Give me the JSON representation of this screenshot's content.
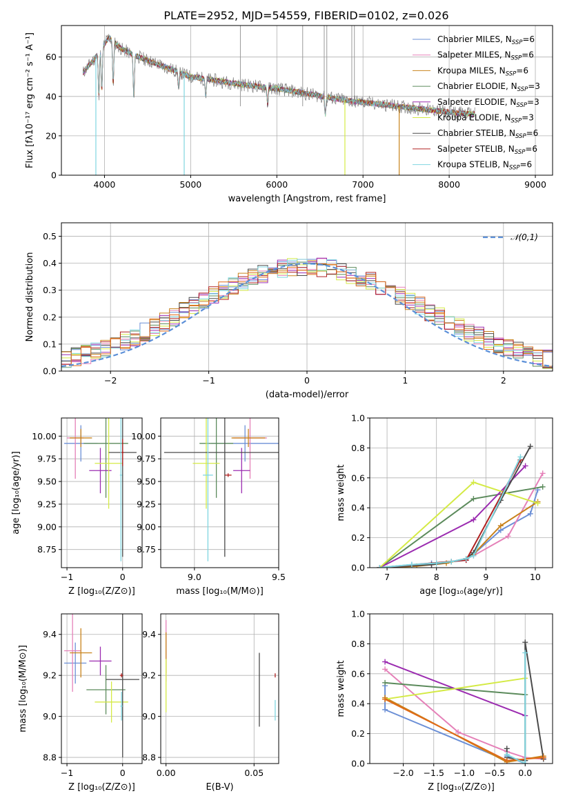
{
  "figure_title": "PLATE=2952, MJD=54559, FIBERID=0102, z=0.026",
  "legend_spectra": [
    {
      "name": "Chabrier MILES, N",
      "sub": "SSP",
      "suffix": "=6",
      "color": "#6b8fd6"
    },
    {
      "name": "Salpeter MILES, N",
      "sub": "SSP",
      "suffix": "=6",
      "color": "#e580b8"
    },
    {
      "name": "Kroupa MILES, N",
      "sub": "SSP",
      "suffix": "=6",
      "color": "#c8821a"
    },
    {
      "name": "Chabrier ELODIE, N",
      "sub": "SSP",
      "suffix": "=3",
      "color": "#5b8a5b"
    },
    {
      "name": "Salpeter ELODIE, N",
      "sub": "SSP",
      "suffix": "=3",
      "color": "#9b2bb0"
    },
    {
      "name": "Kroupa ELODIE, N",
      "sub": "SSP",
      "suffix": "=3",
      "color": "#d4ea45"
    },
    {
      "name": "Chabrier STELIB, N",
      "sub": "SSP",
      "suffix": "=6",
      "color": "#4a4a4a"
    },
    {
      "name": "Salpeter STELIB, N",
      "sub": "SSP",
      "suffix": "=6",
      "color": "#b02020"
    },
    {
      "name": "Kroupa STELIB, N",
      "sub": "SSP",
      "suffix": "=6",
      "color": "#7fd6e0"
    }
  ],
  "chart_data": [
    {
      "id": "spectrum",
      "type": "line",
      "xlabel": "wavelength [Angstrom, rest frame]",
      "ylabel": "Flux [fλ10⁻¹⁷ erg cm⁻² s⁻¹ A⁻¹]",
      "xlim": [
        3500,
        9200
      ],
      "ylim": [
        0,
        76
      ],
      "xticks": [
        4000,
        5000,
        6000,
        7000,
        8000,
        9000
      ],
      "yticks": [
        0,
        20,
        40,
        60
      ],
      "continuum": {
        "x": [
          3750,
          3900,
          4050,
          4200,
          4400,
          4700,
          5000,
          5300,
          5600,
          6000,
          6400,
          6800,
          7200,
          7600,
          8000,
          8300
        ],
        "y": [
          52,
          60,
          70,
          64,
          60,
          55,
          50,
          48,
          46,
          44,
          41,
          38,
          36,
          34,
          32,
          31
        ]
      },
      "absorption_lines": [
        3934,
        3969,
        4101,
        4340,
        4861,
        5175,
        5893,
        6563
      ],
      "model_dropouts": [
        {
          "x": 3900,
          "to": 0
        },
        {
          "x": 4925,
          "to": 0
        },
        {
          "x": 6790,
          "to": 0
        },
        {
          "x": 7420,
          "to": 0
        }
      ],
      "sky_spikes": [
        5577,
        6300,
        6550,
        6580,
        6870,
        6900
      ]
    },
    {
      "id": "residuals",
      "type": "step",
      "xlabel": "(data-model)/error",
      "ylabel": "Normed distribution",
      "xlim": [
        -2.5,
        2.5
      ],
      "ylim": [
        0,
        0.55
      ],
      "xticks": [
        -2,
        -1,
        0,
        1,
        2
      ],
      "yticks": [
        0.0,
        0.1,
        0.2,
        0.3,
        0.4,
        0.5
      ],
      "legend": [
        {
          "name": "𝒩(0,1)",
          "color": "#5b8fd8"
        }
      ],
      "bin_width": 0.1
    },
    {
      "id": "age_vs_Z",
      "type": "scatter",
      "xlabel": "Z [log₁₀(Z/Z⊙)]",
      "ylabel": "age  [log₁₀(age/yr)]",
      "xlim": [
        -1.1,
        0.35
      ],
      "ylim": [
        8.55,
        10.2
      ],
      "xticks": [
        -1,
        0
      ],
      "yticks": [
        8.75,
        9.0,
        9.25,
        9.5,
        9.75,
        10.0
      ],
      "points": [
        {
          "x": -0.75,
          "y": 9.92,
          "xe": 0.3,
          "ye": 0.2,
          "color": "#6b8fd6"
        },
        {
          "x": -0.85,
          "y": 9.98,
          "xe": 0.15,
          "ye": 0.45,
          "color": "#e580b8"
        },
        {
          "x": -0.75,
          "y": 9.98,
          "xe": 0.2,
          "ye": 0.1,
          "color": "#c8821a"
        },
        {
          "x": -0.3,
          "y": 9.92,
          "xe": 0.4,
          "ye": 0.6,
          "color": "#5b8a5b"
        },
        {
          "x": -0.4,
          "y": 9.62,
          "xe": 0.2,
          "ye": 0.25,
          "color": "#9b2bb0"
        },
        {
          "x": -0.25,
          "y": 9.7,
          "xe": 0.25,
          "ye": 0.5,
          "color": "#d4ea45"
        },
        {
          "x": 0.0,
          "y": 9.82,
          "xe": 0.25,
          "ye": 1.15,
          "color": "#4a4a4a"
        },
        {
          "x": 0.0,
          "y": 9.82,
          "xe": 0.02,
          "ye": 0.15,
          "color": "#b02020"
        },
        {
          "x": -0.03,
          "y": 9.57,
          "xe": 0.02,
          "ye": 0.95,
          "color": "#7fd6e0"
        }
      ]
    },
    {
      "id": "age_vs_mass",
      "type": "scatter",
      "xlabel": "mass [log₁₀(M/M⊙)]",
      "ylabel": "",
      "xlim": [
        8.8,
        9.5
      ],
      "ylim": [
        8.55,
        10.2
      ],
      "xticks": [
        9.0,
        9.5
      ],
      "yticks": [
        8.75,
        9.0,
        9.25,
        9.5,
        9.75,
        10.0
      ],
      "points": [
        {
          "x": 9.3,
          "y": 9.92,
          "xe": 0.2,
          "ye": 0.2,
          "color": "#6b8fd6"
        },
        {
          "x": 9.33,
          "y": 9.98,
          "xe": 0.1,
          "ye": 0.45,
          "color": "#e580b8"
        },
        {
          "x": 9.32,
          "y": 9.98,
          "xe": 0.1,
          "ye": 0.1,
          "color": "#c8821a"
        },
        {
          "x": 9.13,
          "y": 9.92,
          "xe": 0.1,
          "ye": 0.6,
          "color": "#5b8a5b"
        },
        {
          "x": 9.28,
          "y": 9.62,
          "xe": 0.05,
          "ye": 0.25,
          "color": "#9b2bb0"
        },
        {
          "x": 9.07,
          "y": 9.7,
          "xe": 0.08,
          "ye": 0.5,
          "color": "#d4ea45"
        },
        {
          "x": 9.18,
          "y": 9.82,
          "xe": 0.36,
          "ye": 1.15,
          "color": "#4a4a4a"
        },
        {
          "x": 9.2,
          "y": 9.57,
          "xe": 0.02,
          "ye": 0.02,
          "color": "#b02020"
        },
        {
          "x": 9.08,
          "y": 9.57,
          "xe": 0.03,
          "ye": 0.95,
          "color": "#7fd6e0"
        }
      ]
    },
    {
      "id": "massweight_vs_age",
      "type": "line",
      "xlabel": "age  [log₁₀(age/yr)]",
      "ylabel": "mass weight",
      "xlim": [
        6.65,
        10.35
      ],
      "ylim": [
        0,
        1.0
      ],
      "xticks": [
        7,
        8,
        9,
        10
      ],
      "yticks": [
        0.0,
        0.2,
        0.4,
        0.6,
        0.8,
        1.0
      ],
      "series": [
        {
          "color": "#6b8fd6",
          "x": [
            6.85,
            7.5,
            7.9,
            8.3,
            8.6,
            8.75,
            9.3,
            9.9,
            10.05
          ],
          "y": [
            0,
            0.02,
            0.03,
            0.04,
            0.05,
            0.09,
            0.25,
            0.36,
            0.52
          ]
        },
        {
          "color": "#e580b8",
          "x": [
            6.85,
            7.5,
            7.9,
            8.3,
            8.6,
            8.75,
            9.45,
            10.15
          ],
          "y": [
            0,
            0.01,
            0.02,
            0.04,
            0.06,
            0.08,
            0.21,
            0.63
          ]
        },
        {
          "color": "#c8821a",
          "x": [
            6.85,
            7.6,
            8.2,
            8.6,
            8.75,
            9.3,
            10.05
          ],
          "y": [
            0,
            0.01,
            0.03,
            0.06,
            0.09,
            0.28,
            0.44
          ]
        },
        {
          "color": "#5b8a5b",
          "x": [
            6.85,
            8.75,
            10.15
          ],
          "y": [
            0,
            0.46,
            0.54
          ]
        },
        {
          "color": "#9b2bb0",
          "x": [
            6.85,
            8.75,
            9.8
          ],
          "y": [
            0,
            0.32,
            0.68
          ]
        },
        {
          "color": "#d4ea45",
          "x": [
            6.85,
            8.75,
            10.05
          ],
          "y": [
            0,
            0.57,
            0.43
          ]
        },
        {
          "color": "#4a4a4a",
          "x": [
            6.85,
            7.9,
            8.3,
            8.6,
            8.75,
            9.3,
            9.9
          ],
          "y": [
            0,
            0.02,
            0.04,
            0.06,
            0.1,
            0.45,
            0.81
          ]
        },
        {
          "color": "#b02020",
          "x": [
            6.85,
            8.6,
            9.7
          ],
          "y": [
            0,
            0.05,
            0.72
          ]
        },
        {
          "color": "#7fd6e0",
          "x": [
            6.85,
            7.5,
            8.0,
            8.3,
            8.6,
            8.75,
            9.7
          ],
          "y": [
            0,
            0.02,
            0.03,
            0.04,
            0.06,
            0.08,
            0.74
          ]
        }
      ]
    },
    {
      "id": "mass_vs_Z",
      "type": "scatter",
      "xlabel": "Z [log₁₀(Z/Z⊙)]",
      "ylabel": "mass [log₁₀(M/M⊙)]",
      "xlim": [
        -1.1,
        0.35
      ],
      "ylim": [
        8.77,
        9.5
      ],
      "xticks": [
        -1,
        0
      ],
      "yticks": [
        8.8,
        9.0,
        9.2,
        9.4
      ],
      "points": [
        {
          "x": -0.85,
          "y": 9.26,
          "xe": 0.2,
          "ye": 0.1,
          "color": "#6b8fd6"
        },
        {
          "x": -0.9,
          "y": 9.32,
          "xe": 0.15,
          "ye": 0.2,
          "color": "#e580b8"
        },
        {
          "x": -0.75,
          "y": 9.31,
          "xe": 0.2,
          "ye": 0.12,
          "color": "#c8821a"
        },
        {
          "x": -0.3,
          "y": 9.13,
          "xe": 0.35,
          "ye": 0.12,
          "color": "#5b8a5b"
        },
        {
          "x": -0.4,
          "y": 9.27,
          "xe": 0.2,
          "ye": 0.07,
          "color": "#9b2bb0"
        },
        {
          "x": -0.2,
          "y": 9.07,
          "xe": 0.3,
          "ye": 0.1,
          "color": "#d4ea45"
        },
        {
          "x": 0.0,
          "y": 9.18,
          "xe": 0.3,
          "ye": 0.38,
          "color": "#4a4a4a"
        },
        {
          "x": -0.02,
          "y": 9.2,
          "xe": 0.03,
          "ye": 0.01,
          "color": "#b02020"
        },
        {
          "x": -0.02,
          "y": 9.05,
          "xe": 0.02,
          "ye": 0.07,
          "color": "#7fd6e0"
        }
      ]
    },
    {
      "id": "mass_vs_EBV",
      "type": "scatter",
      "xlabel": "E(B-V)",
      "ylabel": "",
      "xlim": [
        -0.003,
        0.064
      ],
      "ylim": [
        8.77,
        9.5
      ],
      "xticks": [
        0.0,
        0.05
      ],
      "yticks": [
        8.8,
        9.0,
        9.2,
        9.4
      ],
      "points": [
        {
          "x": 0.0,
          "y": 9.32,
          "xe": 0.0,
          "ye": 0.15,
          "color": "#e580b8"
        },
        {
          "x": 0.0,
          "y": 9.31,
          "xe": 0.0,
          "ye": 0.1,
          "color": "#c8821a"
        },
        {
          "x": 0.0,
          "y": 9.15,
          "xe": 0.0,
          "ye": 0.13,
          "color": "#d4ea45"
        },
        {
          "x": 0.053,
          "y": 9.13,
          "xe": 0.0,
          "ye": 0.18,
          "color": "#4a4a4a"
        },
        {
          "x": 0.062,
          "y": 9.2,
          "xe": 0.0,
          "ye": 0.01,
          "color": "#b02020"
        },
        {
          "x": 0.062,
          "y": 9.03,
          "xe": 0.0,
          "ye": 0.05,
          "color": "#7fd6e0"
        }
      ]
    },
    {
      "id": "massweight_vs_Z",
      "type": "line",
      "xlabel": "Z [log₁₀(Z/Z⊙)]",
      "ylabel": "mass weight",
      "xlim": [
        -2.55,
        0.45
      ],
      "ylim": [
        0,
        1.0
      ],
      "xticks": [
        -2.0,
        -1.5,
        -1.0,
        -0.5,
        0.0
      ],
      "yticks": [
        0.0,
        0.2,
        0.4,
        0.6,
        0.8,
        1.0
      ],
      "series": [
        {
          "color": "#6b8fd6",
          "x": [
            -2.3,
            -2.3,
            -0.3,
            -0.3,
            0.0,
            0.0
          ],
          "y": [
            0.52,
            0.36,
            0.02,
            0.05,
            0.0,
            0.02
          ]
        },
        {
          "color": "#e580b8",
          "x": [
            -2.3,
            -1.1,
            -0.3,
            0.0,
            0.3
          ],
          "y": [
            0.63,
            0.21,
            0.08,
            0.04,
            0.03
          ]
        },
        {
          "color": "#c8821a",
          "x": [
            -2.3,
            -0.3,
            0.3
          ],
          "y": [
            0.44,
            0.01,
            0.05
          ]
        },
        {
          "color": "#5b8a5b",
          "x": [
            -2.3,
            0.0
          ],
          "y": [
            0.54,
            0.46
          ]
        },
        {
          "color": "#9b2bb0",
          "x": [
            -2.3,
            0.0
          ],
          "y": [
            0.68,
            0.32
          ]
        },
        {
          "color": "#d4ea45",
          "x": [
            -2.3,
            0.0
          ],
          "y": [
            0.43,
            0.57
          ]
        },
        {
          "color": "#4a4a4a",
          "x": [
            -0.3,
            -0.3,
            0.0,
            0.0,
            0.3
          ],
          "y": [
            0.1,
            0.04,
            0.02,
            0.81,
            0.03
          ]
        },
        {
          "color": "#e06a18",
          "x": [
            -2.3,
            -0.3,
            0.3
          ],
          "y": [
            0.43,
            0.02,
            0.04
          ]
        },
        {
          "color": "#7fd6e0",
          "x": [
            -0.3,
            0.0,
            0.0
          ],
          "y": [
            0.06,
            0.0,
            0.74
          ]
        }
      ]
    }
  ]
}
